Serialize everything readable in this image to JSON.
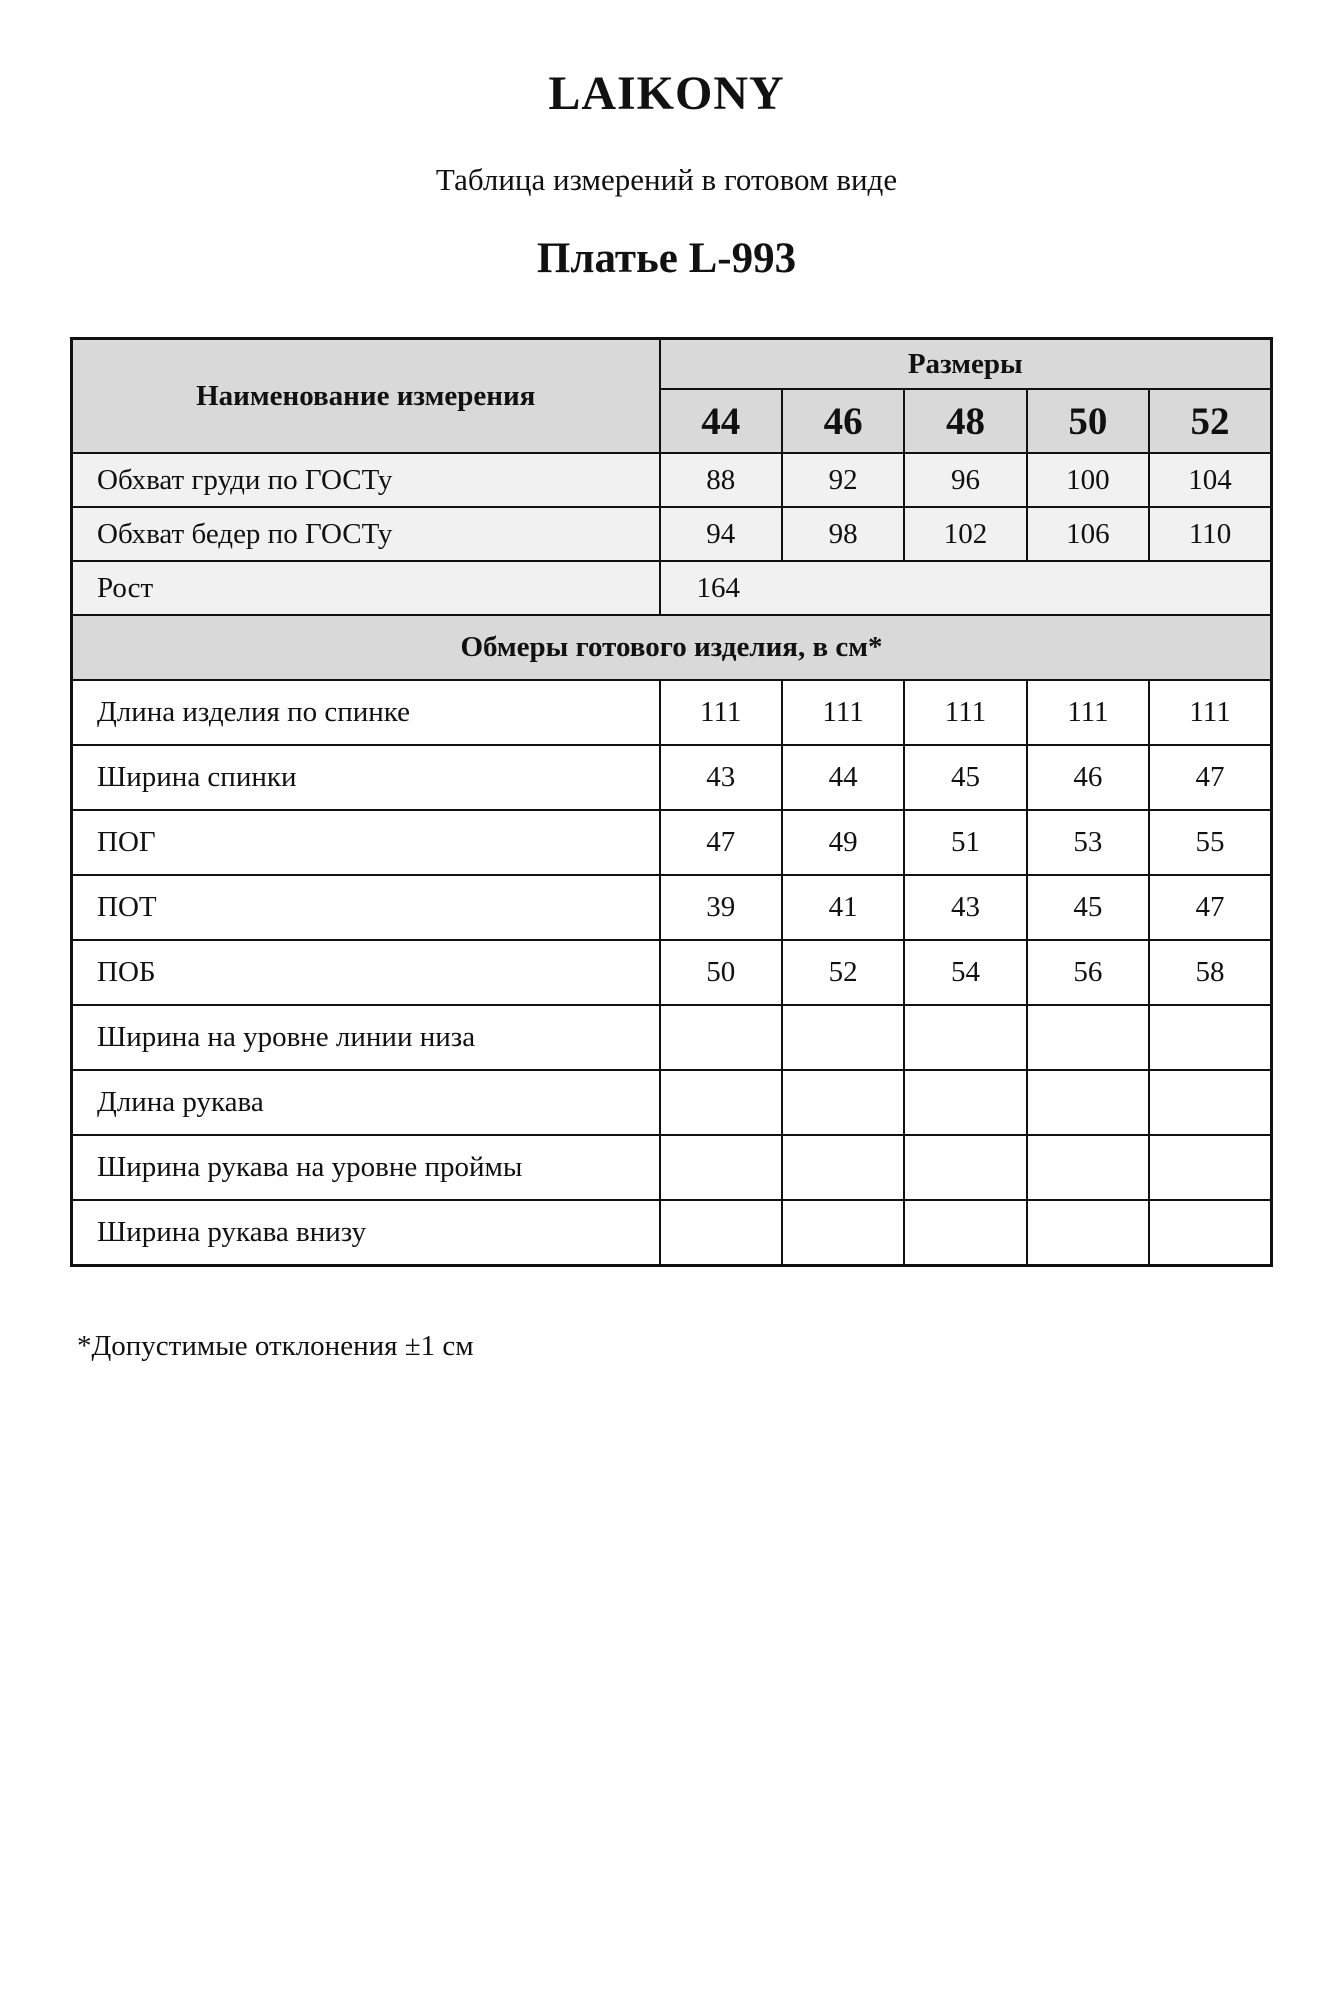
{
  "brand": "LAIKONY",
  "subtitle": "Таблица измерений в готовом виде",
  "title": "Платье L-993",
  "table": {
    "name_header": "Наименование измерения",
    "sizes_header": "Размеры",
    "sizes": [
      "44",
      "46",
      "48",
      "50",
      "52"
    ],
    "gost_rows": [
      {
        "name": "Обхват груди по ГОСТу",
        "values": [
          "88",
          "92",
          "96",
          "100",
          "104"
        ]
      },
      {
        "name": "Обхват бедер по ГОСТу",
        "values": [
          "94",
          "98",
          "102",
          "106",
          "110"
        ]
      }
    ],
    "height_row": {
      "name": "Рост",
      "value": "164"
    },
    "section_header": "Обмеры готового изделия, в см*",
    "rows": [
      {
        "name": "Длина изделия по спинке",
        "values": [
          "111",
          "111",
          "111",
          "111",
          "111"
        ]
      },
      {
        "name": "Ширина спинки",
        "values": [
          "43",
          "44",
          "45",
          "46",
          "47"
        ]
      },
      {
        "name": "ПОГ",
        "values": [
          "47",
          "49",
          "51",
          "53",
          "55"
        ]
      },
      {
        "name": "ПОТ",
        "values": [
          "39",
          "41",
          "43",
          "45",
          "47"
        ]
      },
      {
        "name": "ПОБ",
        "values": [
          "50",
          "52",
          "54",
          "56",
          "58"
        ]
      },
      {
        "name": "Ширина на уровне линии низа",
        "values": [
          "",
          "",
          "",
          "",
          ""
        ]
      },
      {
        "name": "Длина рукава",
        "values": [
          "",
          "",
          "",
          "",
          ""
        ]
      },
      {
        "name": "Ширина рукава на уровне проймы",
        "values": [
          "",
          "",
          "",
          "",
          ""
        ]
      },
      {
        "name": "Ширина рукава внизу",
        "values": [
          "",
          "",
          "",
          "",
          ""
        ]
      }
    ]
  },
  "footnote": "*Допустимые отклонения ±1 см",
  "colors": {
    "header_bg": "#d9d9d9",
    "row_bg": "#f1f1f1",
    "border": "#111111"
  }
}
